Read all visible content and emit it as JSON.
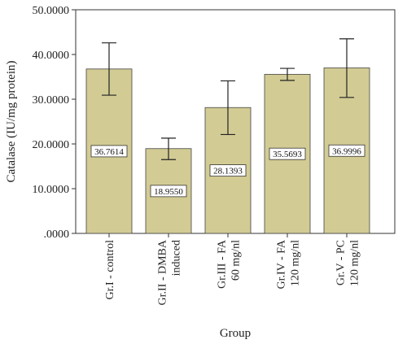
{
  "chart_data": {
    "type": "bar",
    "categories": [
      [
        "Gr.I - control"
      ],
      [
        "Gr.II - DMBA",
        "induced"
      ],
      [
        "Gr.III - FA",
        "60 mg/nl"
      ],
      [
        "Gr.IV - FA",
        "120 mg/nl"
      ],
      [
        "Gr.V - PC",
        "120 mg/nl"
      ]
    ],
    "values": [
      36.7614,
      18.955,
      28.1393,
      35.5693,
      36.9996
    ],
    "value_labels": [
      "36.7614",
      "18.9550",
      "28.1393",
      "35.5693",
      "36.9996"
    ],
    "error_low": [
      30.9,
      16.5,
      22.1,
      34.2,
      30.4
    ],
    "error_high": [
      42.6,
      21.3,
      34.1,
      36.9,
      43.5
    ],
    "xlabel": "Group",
    "ylabel": "Catalase (IU/mg protein)",
    "ylim": [
      0,
      50
    ],
    "yticks": [
      0,
      10,
      20,
      30,
      40,
      50
    ],
    "ytick_labels": [
      ".0000",
      "10.0000",
      "20.0000",
      "30.0000",
      "40.0000",
      "50.0000"
    ],
    "bar_color": "#d2cb94",
    "grid": false
  }
}
